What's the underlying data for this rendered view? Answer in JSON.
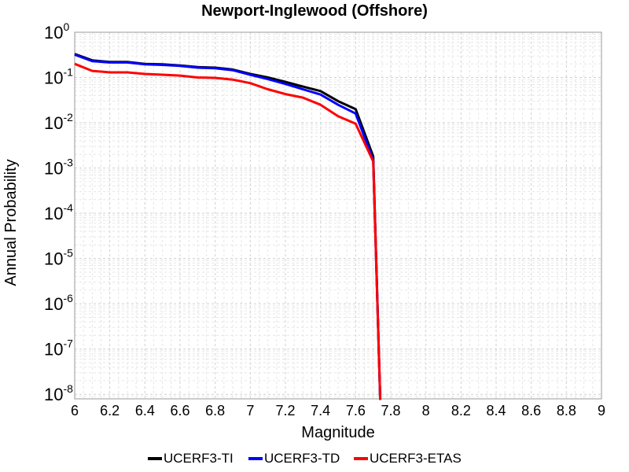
{
  "chart_data": {
    "type": "line",
    "title": "Newport-Inglewood (Offshore)",
    "xlabel": "Magnitude",
    "ylabel": "Annual Probability",
    "xlim": [
      6,
      9
    ],
    "ylim_log10": [
      -8.1,
      0
    ],
    "y_scale": "log",
    "x_ticks": [
      "6",
      "6.2",
      "6.4",
      "6.6",
      "6.8",
      "7",
      "7.2",
      "7.4",
      "7.6",
      "7.8",
      "8",
      "8.2",
      "8.4",
      "8.6",
      "8.8",
      "9"
    ],
    "y_ticks": [
      {
        "base": "10",
        "exp": "0",
        "log": 0
      },
      {
        "base": "10",
        "exp": "-1",
        "log": -1
      },
      {
        "base": "10",
        "exp": "-2",
        "log": -2
      },
      {
        "base": "10",
        "exp": "-3",
        "log": -3
      },
      {
        "base": "10",
        "exp": "-4",
        "log": -4
      },
      {
        "base": "10",
        "exp": "-5",
        "log": -5
      },
      {
        "base": "10",
        "exp": "-6",
        "log": -6
      },
      {
        "base": "10",
        "exp": "-7",
        "log": -7
      },
      {
        "base": "10",
        "exp": "-8",
        "log": -8
      }
    ],
    "grid": true,
    "legend_position": "bottom",
    "series": [
      {
        "name": "UCERF3-TI",
        "color": "#000000",
        "points": [
          [
            6.0,
            0.33
          ],
          [
            6.1,
            0.24
          ],
          [
            6.2,
            0.22
          ],
          [
            6.3,
            0.22
          ],
          [
            6.4,
            0.2
          ],
          [
            6.5,
            0.195
          ],
          [
            6.6,
            0.185
          ],
          [
            6.7,
            0.17
          ],
          [
            6.8,
            0.165
          ],
          [
            6.9,
            0.15
          ],
          [
            7.0,
            0.12
          ],
          [
            7.1,
            0.1
          ],
          [
            7.2,
            0.08
          ],
          [
            7.3,
            0.063
          ],
          [
            7.4,
            0.05
          ],
          [
            7.5,
            0.03
          ],
          [
            7.6,
            0.02
          ],
          [
            7.7,
            0.0018
          ],
          [
            7.74,
            7.5e-09
          ]
        ]
      },
      {
        "name": "UCERF3-TD",
        "color": "#0000ff",
        "points": [
          [
            6.0,
            0.32
          ],
          [
            6.1,
            0.23
          ],
          [
            6.2,
            0.215
          ],
          [
            6.3,
            0.215
          ],
          [
            6.4,
            0.195
          ],
          [
            6.5,
            0.19
          ],
          [
            6.6,
            0.18
          ],
          [
            6.7,
            0.165
          ],
          [
            6.8,
            0.16
          ],
          [
            6.9,
            0.145
          ],
          [
            7.0,
            0.115
          ],
          [
            7.1,
            0.092
          ],
          [
            7.2,
            0.072
          ],
          [
            7.3,
            0.055
          ],
          [
            7.4,
            0.042
          ],
          [
            7.5,
            0.025
          ],
          [
            7.6,
            0.016
          ],
          [
            7.7,
            0.0015
          ],
          [
            7.74,
            7.5e-09
          ]
        ]
      },
      {
        "name": "UCERF3-ETAS",
        "color": "#ff0000",
        "points": [
          [
            6.0,
            0.2
          ],
          [
            6.1,
            0.14
          ],
          [
            6.2,
            0.13
          ],
          [
            6.3,
            0.13
          ],
          [
            6.4,
            0.12
          ],
          [
            6.5,
            0.115
          ],
          [
            6.6,
            0.11
          ],
          [
            6.7,
            0.1
          ],
          [
            6.8,
            0.098
          ],
          [
            6.9,
            0.09
          ],
          [
            7.0,
            0.075
          ],
          [
            7.1,
            0.055
          ],
          [
            7.2,
            0.043
          ],
          [
            7.3,
            0.036
          ],
          [
            7.4,
            0.025
          ],
          [
            7.5,
            0.014
          ],
          [
            7.6,
            0.0095
          ],
          [
            7.7,
            0.0014
          ],
          [
            7.74,
            7.5e-09
          ]
        ]
      }
    ]
  }
}
